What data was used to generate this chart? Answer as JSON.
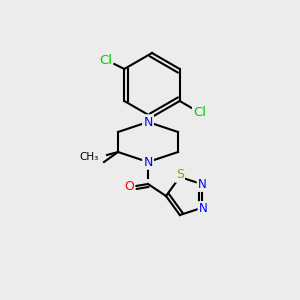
{
  "bg_color": "#ececec",
  "bond_color": "#000000",
  "bond_width": 1.5,
  "atom_colors": {
    "N": "#0000ff",
    "O": "#ff0000",
    "S": "#999900",
    "Cl": "#00cc00",
    "C": "#000000"
  },
  "font_size": 9
}
